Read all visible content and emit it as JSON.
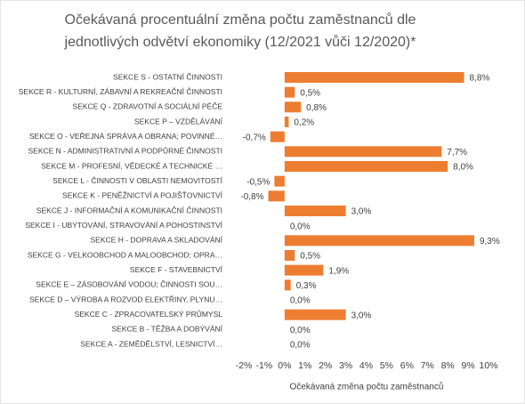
{
  "chart_data": {
    "type": "bar",
    "orientation": "horizontal",
    "title": [
      "Očekávaná procentuální změna počtu zaměstnanců dle",
      "jednotlivých odvětví ekonomiky (12/2021 vůči 12/2020)*"
    ],
    "xlabel": "Očekávaná změna počtu zaměstnanců",
    "categories": [
      "SEKCE S - OSTATNÍ ČINNOSTI",
      "SEKCE R - KULTURNÍ, ZÁBAVNÍ A REKREAČNÍ ČINNOSTI",
      "SEKCE Q - ZDRAVOTNÍ A SOCIÁLNÍ PÉČE",
      "SEKCE P – VZDĚLÁVÁNÍ",
      "SEKCE O - VEŘEJNÁ SPRÁVA A OBRANA; POVINNÉ…",
      "SEKCE N - ADMINISTRATIVNÍ A PODPŮRNÉ ČINNOSTI",
      "SEKCE M - PROFESNÍ, VĚDECKÉ A TECHNICKÉ …",
      "SEKCE L - ČINNOSTI V OBLASTI NEMOVITOSTÍ",
      "SEKCE K - PENĚŽNICTVÍ A POJIŠŤOVNICTVÍ",
      "SEKCE J - INFORMAČNÍ A KOMUNIKAČNÍ ČINNOSTI",
      "SEKCE I - UBYTOVÁNÍ, STRAVOVÁNÍ A POHOSTINSTVÍ",
      "SEKCE H - DOPRAVA A SKLADOVÁNÍ",
      "SEKCE G - VELKOOBCHOD A MALOOBCHOD; OPRA…",
      "SEKCE F - STAVEBNICTVÍ",
      "SEKCE E – ZÁSOBOVÁNÍ VODOU; ČINNOSTI SOU…",
      "SEKCE D – VÝROBA A ROZVOD ELEKTŘINY, PLYNU…",
      "SEKCE C - ZPRACOVATELSKÝ PRŮMYSL",
      "SEKCE B - TĚŽBA A DOBÝVÁNÍ",
      "SEKCE A - ZEMĚDĚLSTVÍ, LESNICTVÍ…"
    ],
    "values": [
      8.8,
      0.5,
      0.8,
      0.2,
      -0.7,
      7.7,
      8.0,
      -0.5,
      -0.8,
      3.0,
      0.0,
      9.3,
      0.5,
      1.9,
      0.3,
      0.0,
      3.0,
      0.0,
      0.0
    ],
    "value_labels": [
      "8,8%",
      "0,5%",
      "0,8%",
      "0,2%",
      "-0,7%",
      "7,7%",
      "8,0%",
      "-0,5%",
      "-0,8%",
      "3,0%",
      "0,0%",
      "9,3%",
      "0,5%",
      "1,9%",
      "0,3%",
      "0,0%",
      "3,0%",
      "0,0%",
      "0,0%"
    ],
    "color": "#ed7d31",
    "xlim": [
      -2,
      10
    ],
    "xticks": [
      {
        "value": -2,
        "label": "-2%"
      },
      {
        "value": -1,
        "label": "-1%"
      },
      {
        "value": 0,
        "label": "0%"
      },
      {
        "value": 1,
        "label": "1%"
      },
      {
        "value": 2,
        "label": "2%"
      },
      {
        "value": 3,
        "label": "3%"
      },
      {
        "value": 4,
        "label": "4%"
      },
      {
        "value": 5,
        "label": "5%"
      },
      {
        "value": 6,
        "label": "6%"
      },
      {
        "value": 7,
        "label": "7%"
      },
      {
        "value": 8,
        "label": "8%"
      },
      {
        "value": 9,
        "label": "9%"
      },
      {
        "value": 10,
        "label": "10%"
      }
    ],
    "grid": false
  }
}
